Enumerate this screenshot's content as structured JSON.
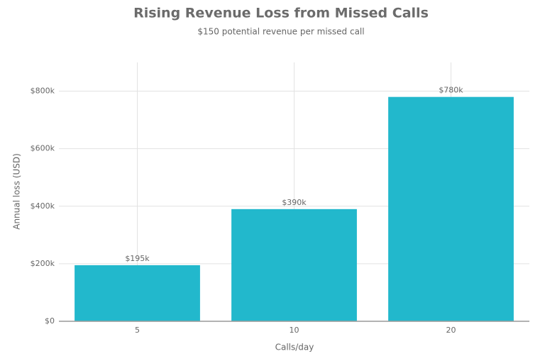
{
  "chart_data": {
    "type": "bar",
    "title": "Rising Revenue Loss from Missed Calls",
    "subtitle": "$150 potential revenue per missed call",
    "x_label": "Calls/day",
    "y_label": "Annual loss (USD)",
    "categories": [
      "5",
      "10",
      "20"
    ],
    "values": [
      195000,
      390000,
      780000
    ],
    "value_labels": [
      "$195k",
      "$390k",
      "$780k"
    ],
    "color": "#22b8cc",
    "ylim": [
      0,
      900000
    ],
    "yticks": [
      {
        "value": 0,
        "label": "$0"
      },
      {
        "value": 200000,
        "label": "$200k"
      },
      {
        "value": 400000,
        "label": "$400k"
      },
      {
        "value": 600000,
        "label": "$600k"
      },
      {
        "value": 800000,
        "label": "$800k"
      }
    ],
    "grid": true
  }
}
